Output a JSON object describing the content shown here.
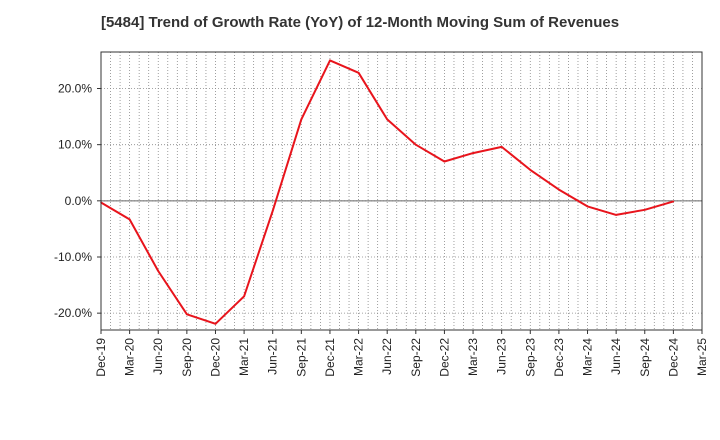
{
  "chart_data": {
    "type": "line",
    "title": "[5484]  Trend of Growth Rate (YoY) of 12-Month Moving Sum of Revenues",
    "xlabel": "",
    "ylabel": "",
    "categories": [
      "Dec-19",
      "Mar-20",
      "Jun-20",
      "Sep-20",
      "Dec-20",
      "Mar-21",
      "Jun-21",
      "Sep-21",
      "Dec-21",
      "Mar-22",
      "Jun-22",
      "Sep-22",
      "Dec-22",
      "Mar-23",
      "Jun-23",
      "Sep-23",
      "Dec-23",
      "Mar-24",
      "Jun-24",
      "Sep-24",
      "Dec-24",
      "Mar-25"
    ],
    "series": [
      {
        "name": "",
        "color": "#e8141c",
        "values": [
          -0.3,
          -3.3,
          -12.5,
          -20.2,
          -21.9,
          -17.0,
          -1.8,
          14.5,
          25.0,
          22.8,
          14.5,
          10.0,
          7.0,
          8.5,
          9.6,
          5.5,
          2.0,
          -1.0,
          -2.5,
          -1.6,
          -0.1,
          null
        ]
      }
    ],
    "ylim": [
      -23.0,
      26.5
    ],
    "yticks": [
      -20,
      -10,
      0,
      10,
      20
    ],
    "ytick_labels": [
      "-20.0%",
      "-10.0%",
      "0.0%",
      "10.0%",
      "20.0%"
    ],
    "grid": true,
    "grid_style": "dotted",
    "zero_line": true,
    "legend": "none"
  }
}
